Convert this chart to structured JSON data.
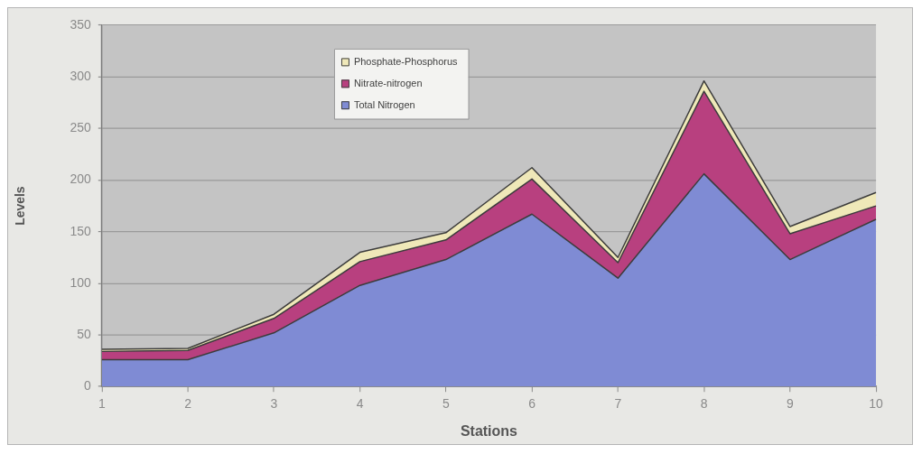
{
  "chart_data": {
    "type": "area",
    "xlabel": "Stations",
    "ylabel": "Levels",
    "stacked": true,
    "categories": [
      "1",
      "2",
      "3",
      "4",
      "5",
      "6",
      "7",
      "8",
      "9",
      "10"
    ],
    "series": [
      {
        "name": "Total Nitrogen",
        "color": "#7f8bd4",
        "values": [
          26,
          26,
          52,
          98,
          123,
          167,
          105,
          206,
          123,
          162
        ]
      },
      {
        "name": "Nitrate-nitrogen",
        "color": "#b8407f",
        "values": [
          8,
          9,
          14,
          23,
          19,
          34,
          15,
          80,
          25,
          13
        ]
      },
      {
        "name": "Phosphate-Phosphorus",
        "color": "#efe8b8",
        "values": [
          2,
          2,
          4,
          9,
          7,
          11,
          5,
          10,
          7,
          13
        ]
      }
    ],
    "ylim": [
      0,
      350
    ],
    "yticks": [
      0,
      50,
      100,
      150,
      200,
      250,
      300,
      350
    ],
    "grid": "y",
    "legend": "top"
  }
}
